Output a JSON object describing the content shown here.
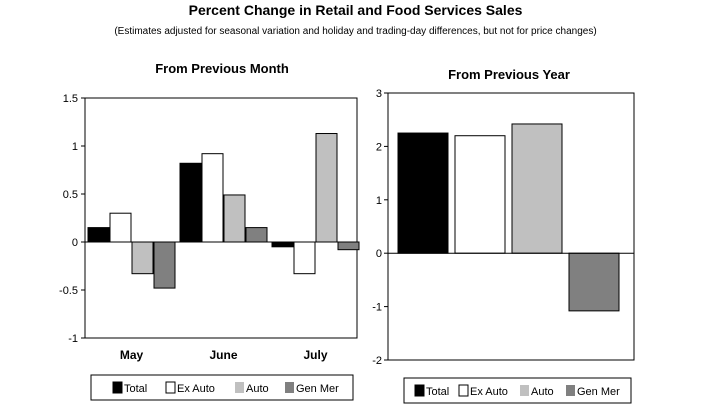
{
  "title": "Percent Change in Retail and Food Services Sales",
  "subtitle": "(Estimates adjusted for seasonal variation and holiday and trading-day differences, but not for price changes)",
  "colors": {
    "Total": "#000000",
    "Ex Auto": "#ffffff",
    "Auto": "#c0c0c0",
    "Gen Mer": "#808080"
  },
  "chart_data": [
    {
      "type": "bar",
      "title": "From Previous Month",
      "categories": [
        "May",
        "June",
        "July"
      ],
      "series": [
        {
          "name": "Total",
          "values": [
            0.15,
            0.82,
            -0.05
          ]
        },
        {
          "name": "Ex Auto",
          "values": [
            0.3,
            0.92,
            -0.33
          ]
        },
        {
          "name": "Auto",
          "values": [
            -0.33,
            0.49,
            1.13
          ]
        },
        {
          "name": "Gen Mer",
          "values": [
            -0.48,
            0.15,
            -0.08
          ]
        }
      ],
      "ylim": [
        -1,
        1.5
      ],
      "yticks": [
        "1.5",
        "1",
        "0.5",
        "0",
        "-0.5",
        "-1"
      ],
      "ytick_values": [
        1.5,
        1,
        0.5,
        0,
        -0.5,
        -1
      ],
      "legend": [
        "Total",
        "Ex Auto",
        "Auto",
        "Gen Mer"
      ],
      "legend_position": "bottom"
    },
    {
      "type": "bar",
      "title": "From Previous Year",
      "categories": [
        ""
      ],
      "series": [
        {
          "name": "Total",
          "values": [
            2.25
          ]
        },
        {
          "name": "Ex Auto",
          "values": [
            2.2
          ]
        },
        {
          "name": "Auto",
          "values": [
            2.42
          ]
        },
        {
          "name": "Gen Mer",
          "values": [
            -1.08
          ]
        }
      ],
      "ylim": [
        -2,
        3
      ],
      "yticks": [
        "3",
        "2",
        "1",
        "0",
        "-1",
        "-2"
      ],
      "ytick_values": [
        3,
        2,
        1,
        0,
        -1,
        -2
      ],
      "legend": [
        "Total",
        "Ex Auto",
        "Auto",
        "Gen Mer"
      ],
      "legend_position": "bottom"
    }
  ]
}
